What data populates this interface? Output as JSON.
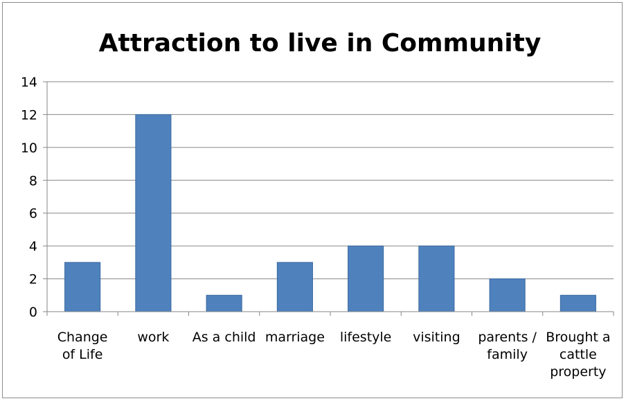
{
  "chart_data": {
    "type": "bar",
    "title": "Attraction to live in Community",
    "categories": [
      [
        "Change",
        "of Life"
      ],
      [
        "work"
      ],
      [
        "As a child"
      ],
      [
        "marriage"
      ],
      [
        "lifestyle"
      ],
      [
        "visiting"
      ],
      [
        "parents /",
        "family"
      ],
      [
        "Brought a",
        "cattle",
        "property"
      ]
    ],
    "values": [
      3,
      12,
      1,
      3,
      4,
      4,
      2,
      1
    ],
    "ylim": [
      0,
      14
    ],
    "yticks": [
      0,
      2,
      4,
      6,
      8,
      10,
      12,
      14
    ],
    "ytick_labels": [
      "0",
      "2",
      "4",
      "6",
      "8",
      "10",
      "12",
      "14"
    ],
    "grid": true,
    "legend": "none",
    "colors": {
      "bar": "#4f81bd",
      "bar_edge": "#3b6aa0",
      "grid": "#868686",
      "axis": "#868686",
      "text": "#000000"
    }
  }
}
